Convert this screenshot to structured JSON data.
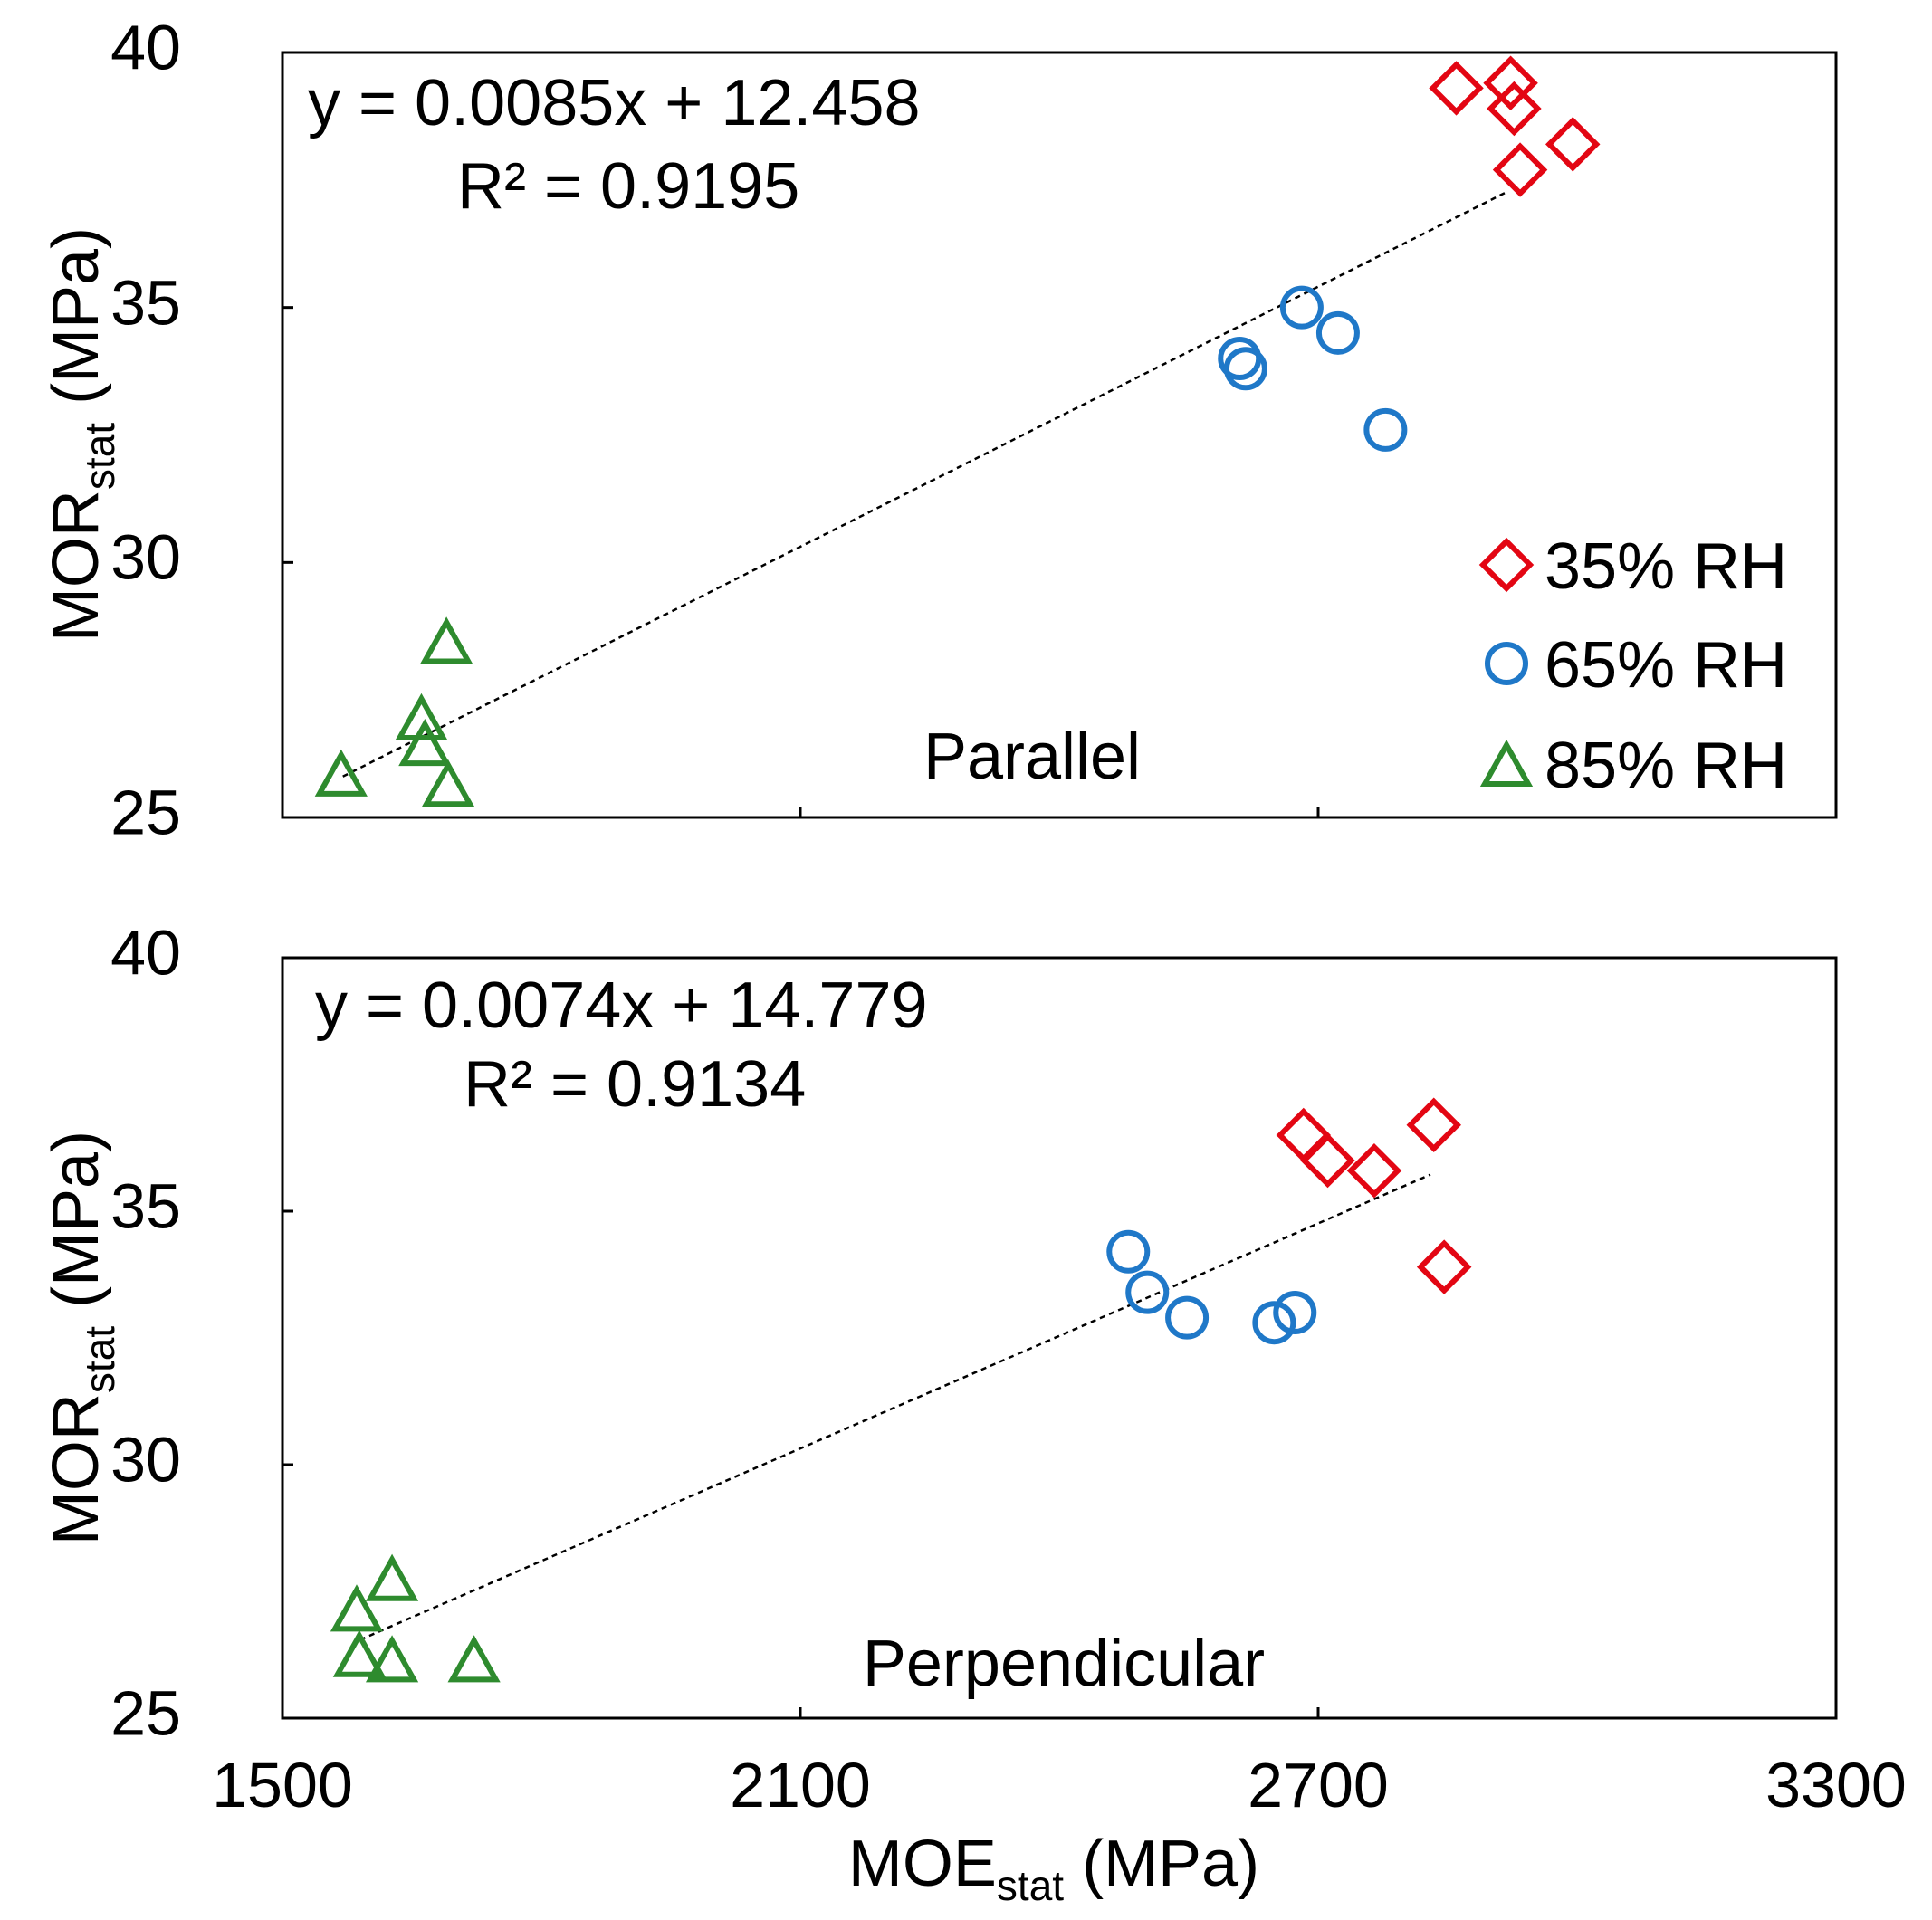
{
  "chart_data": [
    {
      "type": "scatter",
      "panel_label": "Parallel",
      "equation": "y = 0.0085x + 12.458",
      "r_squared": "R² = 0.9195",
      "xlim": [
        1500,
        3300
      ],
      "ylim": [
        25,
        40
      ],
      "x_ticks": [
        1500,
        2100,
        2700,
        3300
      ],
      "y_ticks": [
        "25",
        "30",
        "35",
        "40"
      ],
      "ylabel_main": "MOR",
      "ylabel_sub": "stat",
      "ylabel_unit": " (MPa)",
      "trendline": {
        "x": [
          1570,
          2920
        ],
        "slope": 0.0085,
        "intercept": 12.458
      },
      "series": [
        {
          "name": "35% RH",
          "marker": "diamond",
          "color": "#e30613",
          "points": [
            [
              2860,
              39.3
            ],
            [
              2923,
              39.4
            ],
            [
              2927,
              38.9
            ],
            [
              2934,
              37.7
            ],
            [
              2995,
              38.2
            ]
          ]
        },
        {
          "name": "65% RH",
          "marker": "circle",
          "color": "#1f78c8",
          "points": [
            [
              2609,
              34.0
            ],
            [
              2616,
              33.8
            ],
            [
              2681,
              35.0
            ],
            [
              2723,
              34.5
            ],
            [
              2778,
              32.6
            ]
          ]
        },
        {
          "name": "85% RH",
          "marker": "triangle",
          "color": "#2e8b2e",
          "points": [
            [
              1568,
              25.8
            ],
            [
              1661,
              26.9
            ],
            [
              1665,
              26.4
            ],
            [
              1690,
              28.4
            ],
            [
              1692,
              25.6
            ]
          ]
        }
      ]
    },
    {
      "type": "scatter",
      "panel_label": "Perpendicular",
      "equation": "y = 0.0074x + 14.779",
      "r_squared": "R² = 0.9134",
      "xlim": [
        1500,
        3300
      ],
      "ylim": [
        25,
        40
      ],
      "x_ticks": [
        1500,
        2100,
        2700,
        3300
      ],
      "y_ticks": [
        "25",
        "30",
        "35",
        "40"
      ],
      "ylabel_main": "MOR",
      "ylabel_sub": "stat",
      "ylabel_unit": " (MPa)",
      "trendline": {
        "x": [
          1590,
          2830
        ],
        "slope": 0.0074,
        "intercept": 14.779
      },
      "series": [
        {
          "name": "35% RH",
          "marker": "diamond",
          "color": "#e30613",
          "points": [
            [
              2683,
              36.5
            ],
            [
              2711,
              36.0
            ],
            [
              2765,
              35.8
            ],
            [
              2834,
              36.7
            ],
            [
              2846,
              33.9
            ]
          ]
        },
        {
          "name": "65% RH",
          "marker": "circle",
          "color": "#1f78c8",
          "points": [
            [
              2480,
              34.2
            ],
            [
              2502,
              33.4
            ],
            [
              2548,
              32.9
            ],
            [
              2649,
              32.8
            ],
            [
              2673,
              33.0
            ]
          ]
        },
        {
          "name": "85% RH",
          "marker": "triangle",
          "color": "#2e8b2e",
          "points": [
            [
              1586,
              27.1
            ],
            [
              1589,
              26.2
            ],
            [
              1627,
              26.1
            ],
            [
              1627,
              27.7
            ],
            [
              1722,
              26.1
            ]
          ]
        }
      ]
    }
  ],
  "x_axis": {
    "label_main": "MOE",
    "label_sub": "stat",
    "label_unit": " (MPa)",
    "tick_labels": [
      "1500",
      "2100",
      "2700",
      "3300"
    ]
  },
  "legend": {
    "items": [
      "35% RH",
      "65% RH",
      "85% RH"
    ]
  }
}
